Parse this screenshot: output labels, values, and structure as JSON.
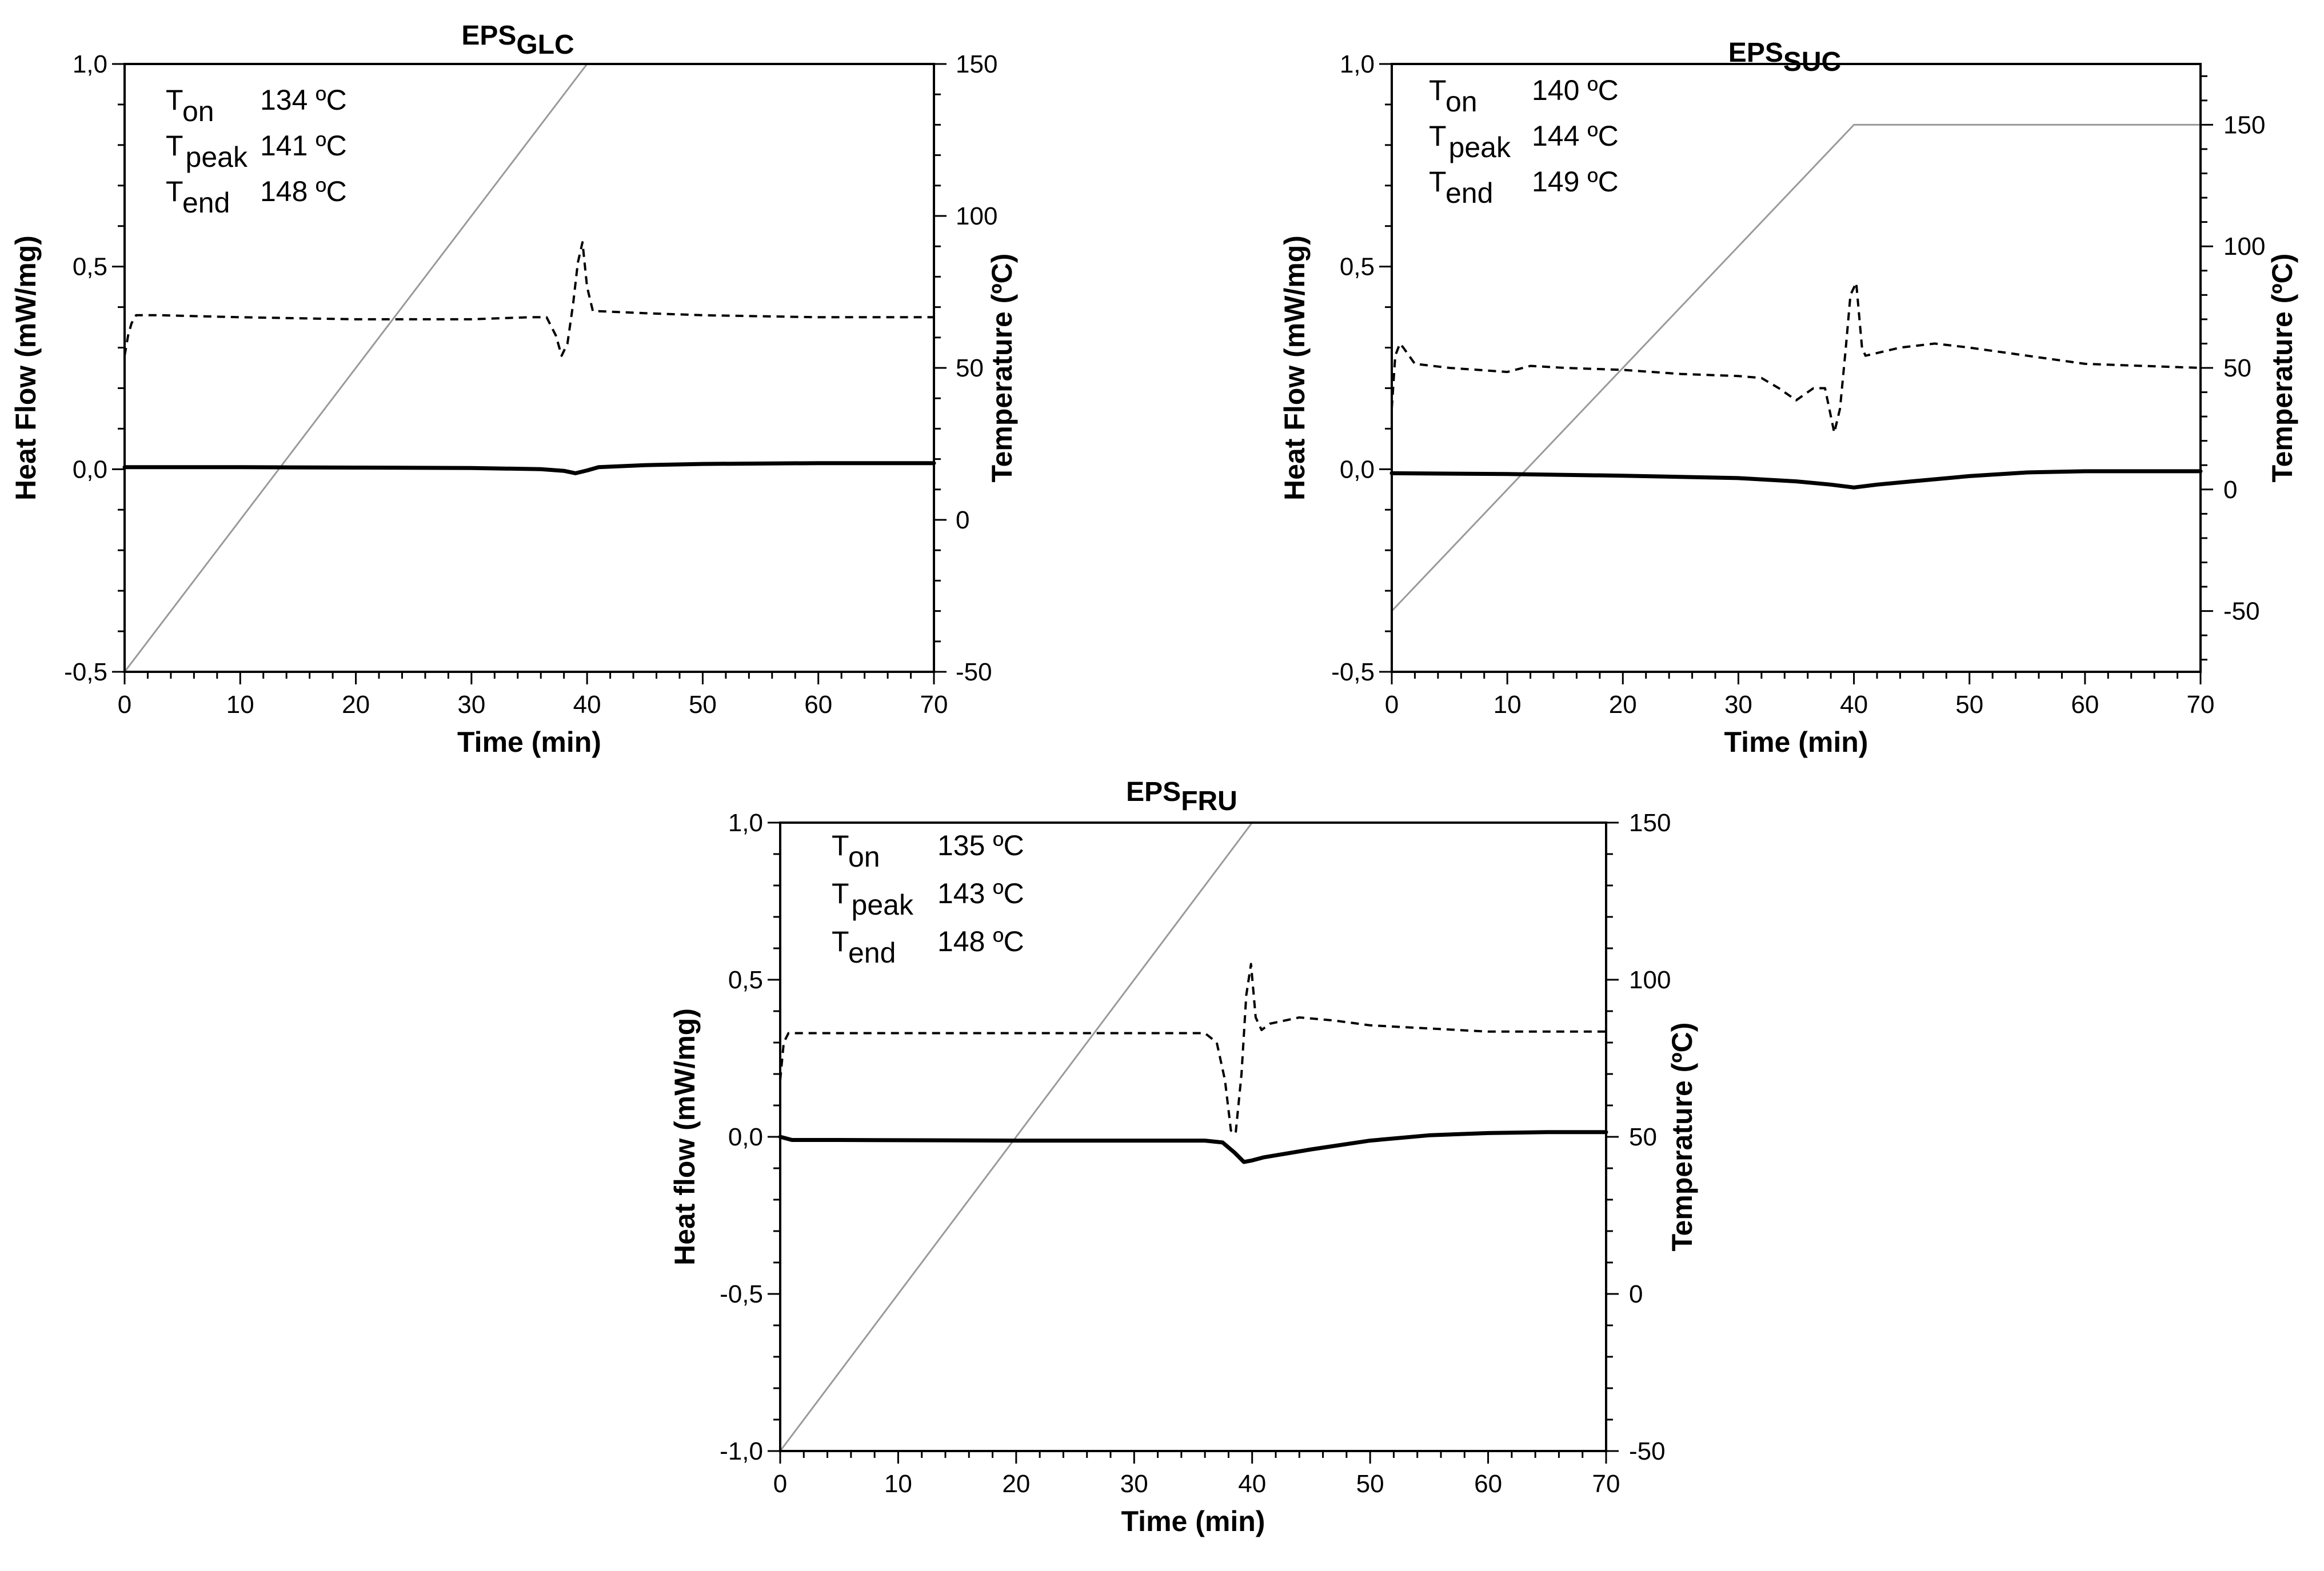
{
  "figure": {
    "description_free": true
  },
  "chart_data": [
    {
      "id": "glc",
      "type": "line",
      "title": {
        "main": "EPS",
        "sub": "GLC"
      },
      "xlabel": "Time (min)",
      "ylabel_left": "Heat Flow (mW/mg)",
      "ylabel_right": "Temperature (ºC)",
      "xlim": [
        0,
        70
      ],
      "ylim_left": [
        -0.5,
        1.0
      ],
      "ylim_right": [
        -50,
        150
      ],
      "x_ticks": [
        "0",
        "10",
        "20",
        "30",
        "40",
        "50",
        "60",
        "70"
      ],
      "y_left_ticks": [
        {
          "v": -0.5,
          "label": "-0,5"
        },
        {
          "v": 0.0,
          "label": "0,0"
        },
        {
          "v": 0.5,
          "label": "0,5"
        },
        {
          "v": 1.0,
          "label": "1,0"
        }
      ],
      "y_right_ticks": [
        {
          "v": -50,
          "label": "-50"
        },
        {
          "v": 0,
          "label": "0"
        },
        {
          "v": 50,
          "label": "50"
        },
        {
          "v": 100,
          "label": "100"
        },
        {
          "v": 150,
          "label": "150"
        }
      ],
      "annotations": [
        {
          "name": "T",
          "sub": "on",
          "value": "134 ºC"
        },
        {
          "name": "T",
          "sub": "peak",
          "value": "141 ºC"
        },
        {
          "name": "T",
          "sub": "end",
          "value": "148 ºC"
        }
      ],
      "series": [
        {
          "name": "temperature",
          "axis": "right",
          "style": "thin-gray",
          "x": [
            0,
            40,
            70
          ],
          "y": [
            -50,
            150,
            150
          ]
        },
        {
          "name": "heat-flow-derivative",
          "axis": "left",
          "style": "dashed",
          "x": [
            0,
            0.3,
            0.6,
            1,
            3,
            10,
            20,
            30,
            35,
            36.5,
            37.3,
            37.8,
            38.3,
            38.8,
            39.2,
            39.6,
            40,
            40.5,
            41,
            45,
            50,
            60,
            70
          ],
          "y": [
            0.28,
            0.33,
            0.36,
            0.38,
            0.38,
            0.375,
            0.37,
            0.37,
            0.375,
            0.375,
            0.33,
            0.28,
            0.31,
            0.41,
            0.51,
            0.56,
            0.45,
            0.39,
            0.39,
            0.385,
            0.38,
            0.375,
            0.375
          ]
        },
        {
          "name": "heat-flow",
          "axis": "left",
          "style": "thick-solid",
          "x": [
            0,
            10,
            20,
            30,
            36,
            38,
            39,
            40,
            41,
            45,
            50,
            60,
            70
          ],
          "y": [
            0.005,
            0.005,
            0.004,
            0.003,
            0.0,
            -0.004,
            -0.01,
            -0.003,
            0.005,
            0.01,
            0.013,
            0.015,
            0.015
          ]
        }
      ]
    },
    {
      "id": "suc",
      "type": "line",
      "title": {
        "main": "EPS",
        "sub": "SUC"
      },
      "xlabel": "Time (min)",
      "ylabel_left": "Heat Flow (mW/mg)",
      "ylabel_right": "Temperature (ºC)",
      "xlim": [
        0,
        70
      ],
      "ylim_left": [
        -0.5,
        1.0
      ],
      "ylim_right": [
        -75,
        175
      ],
      "x_ticks": [
        "0",
        "10",
        "20",
        "30",
        "40",
        "50",
        "60",
        "70"
      ],
      "y_left_ticks": [
        {
          "v": -0.5,
          "label": "-0,5"
        },
        {
          "v": 0.0,
          "label": "0,0"
        },
        {
          "v": 0.5,
          "label": "0,5"
        },
        {
          "v": 1.0,
          "label": "1,0"
        }
      ],
      "y_right_ticks": [
        {
          "v": -50,
          "label": "-50"
        },
        {
          "v": 0,
          "label": "0"
        },
        {
          "v": 50,
          "label": "50"
        },
        {
          "v": 100,
          "label": "100"
        },
        {
          "v": 150,
          "label": "150"
        }
      ],
      "annotations": [
        {
          "name": "T",
          "sub": "on",
          "value": "140 ºC"
        },
        {
          "name": "T",
          "sub": "peak",
          "value": "144 ºC"
        },
        {
          "name": "T",
          "sub": "end",
          "value": "149 ºC"
        }
      ],
      "series": [
        {
          "name": "temperature",
          "axis": "right",
          "style": "thin-gray",
          "x": [
            0,
            40,
            70
          ],
          "y": [
            -50,
            150,
            150
          ]
        },
        {
          "name": "heat-flow-derivative",
          "axis": "left",
          "style": "dashed",
          "x": [
            0,
            0.3,
            0.7,
            1,
            2,
            5,
            10,
            12,
            15,
            20,
            25,
            30,
            32,
            33.5,
            35,
            36.5,
            37.5,
            38.3,
            38.8,
            39.3,
            39.7,
            40.2,
            40.7,
            41,
            44,
            47,
            50,
            55,
            60,
            65,
            70
          ],
          "y": [
            0.15,
            0.28,
            0.31,
            0.3,
            0.26,
            0.25,
            0.24,
            0.255,
            0.25,
            0.245,
            0.235,
            0.23,
            0.225,
            0.2,
            0.17,
            0.2,
            0.2,
            0.09,
            0.15,
            0.3,
            0.43,
            0.46,
            0.3,
            0.28,
            0.3,
            0.31,
            0.3,
            0.28,
            0.26,
            0.255,
            0.25
          ]
        },
        {
          "name": "heat-flow",
          "axis": "left",
          "style": "thick-solid",
          "x": [
            0,
            10,
            20,
            30,
            35,
            38,
            40,
            42,
            45,
            50,
            55,
            60,
            65,
            70
          ],
          "y": [
            -0.01,
            -0.012,
            -0.016,
            -0.022,
            -0.03,
            -0.038,
            -0.045,
            -0.038,
            -0.03,
            -0.017,
            -0.008,
            -0.005,
            -0.005,
            -0.005
          ]
        }
      ]
    },
    {
      "id": "fru",
      "type": "line",
      "title": {
        "main": "EPS",
        "sub": "FRU"
      },
      "xlabel": "Time (min)",
      "ylabel_left": "Heat flow (mW/mg)",
      "ylabel_right": "Temperature (ºC)",
      "xlim": [
        0,
        70
      ],
      "ylim_left": [
        -1.0,
        1.0
      ],
      "ylim_right": [
        -50,
        150
      ],
      "x_ticks": [
        "0",
        "10",
        "20",
        "30",
        "40",
        "50",
        "60",
        "70"
      ],
      "y_left_ticks": [
        {
          "v": -1.0,
          "label": "-1,0"
        },
        {
          "v": -0.5,
          "label": "-0,5"
        },
        {
          "v": 0.0,
          "label": "0,0"
        },
        {
          "v": 0.5,
          "label": "0,5"
        },
        {
          "v": 1.0,
          "label": "1,0"
        }
      ],
      "y_right_ticks": [
        {
          "v": -50,
          "label": "-50"
        },
        {
          "v": 0,
          "label": "0"
        },
        {
          "v": 50,
          "label": "50"
        },
        {
          "v": 100,
          "label": "100"
        },
        {
          "v": 150,
          "label": "150"
        }
      ],
      "annotations": [
        {
          "name": "T",
          "sub": "on",
          "value": "135 ºC"
        },
        {
          "name": "T",
          "sub": "peak",
          "value": "143 ºC"
        },
        {
          "name": "T",
          "sub": "end",
          "value": "148 ºC"
        }
      ],
      "series": [
        {
          "name": "temperature",
          "axis": "right",
          "style": "thin-gray",
          "x": [
            0,
            40,
            70
          ],
          "y": [
            -50,
            150,
            150
          ]
        },
        {
          "name": "heat-flow-derivative",
          "axis": "left",
          "style": "dashed",
          "x": [
            0,
            0.3,
            0.7,
            1,
            5,
            20,
            30,
            36,
            37,
            37.7,
            38.2,
            38.6,
            39.1,
            39.5,
            39.9,
            40.3,
            40.8,
            41.5,
            44,
            47,
            50,
            60,
            70
          ],
          "y": [
            0.18,
            0.3,
            0.33,
            0.33,
            0.33,
            0.33,
            0.33,
            0.33,
            0.3,
            0.18,
            0.02,
            0.01,
            0.2,
            0.45,
            0.55,
            0.38,
            0.34,
            0.36,
            0.38,
            0.37,
            0.355,
            0.335,
            0.335
          ]
        },
        {
          "name": "heat-flow",
          "axis": "left",
          "style": "thick-solid",
          "x": [
            0,
            1,
            5,
            20,
            30,
            36,
            37.5,
            38.5,
            39.3,
            40,
            41,
            45,
            50,
            55,
            60,
            65,
            70
          ],
          "y": [
            0.0,
            -0.01,
            -0.01,
            -0.012,
            -0.012,
            -0.012,
            -0.018,
            -0.05,
            -0.08,
            -0.075,
            -0.065,
            -0.04,
            -0.012,
            0.005,
            0.012,
            0.015,
            0.015
          ]
        }
      ]
    }
  ]
}
